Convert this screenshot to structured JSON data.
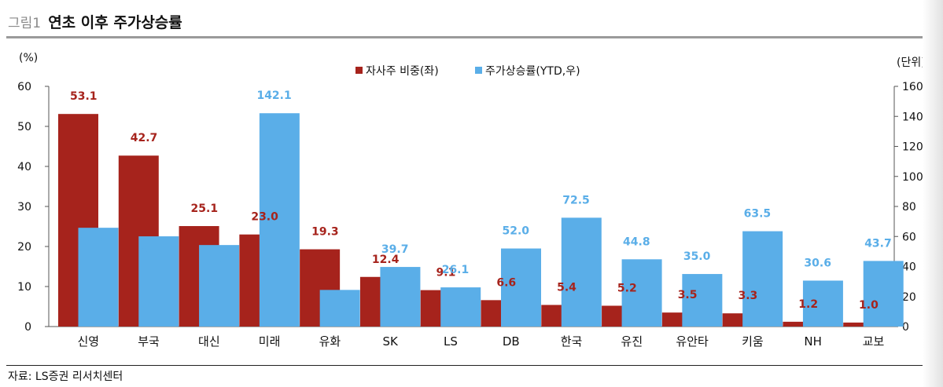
{
  "figure": {
    "label": "그림1",
    "title": "연초 이후 주가상승률"
  },
  "source": "자료: LS증권 리서치센터",
  "chart_data": {
    "type": "bar",
    "categories": [
      "신영",
      "부국",
      "대신",
      "미래",
      "유화",
      "SK",
      "LS",
      "DB",
      "한국",
      "유진",
      "유안타",
      "키움",
      "NH",
      "교보"
    ],
    "series": [
      {
        "name": "자사주 비중(좌)",
        "axis": "left",
        "color": "#a6231c",
        "values": [
          53.1,
          42.7,
          25.1,
          23.0,
          19.3,
          12.4,
          9.1,
          6.6,
          5.4,
          5.2,
          3.5,
          3.3,
          1.2,
          1.0
        ],
        "label_color": "#a6231c"
      },
      {
        "name": "주가상승률(YTD,우)",
        "axis": "right",
        "color": "#5aaee8",
        "values": [
          65.8,
          60.1,
          54.3,
          142.1,
          24.4,
          39.7,
          26.1,
          52.0,
          72.5,
          44.8,
          35.0,
          63.5,
          30.6,
          43.7
        ],
        "label_color": "#5aaee8"
      }
    ],
    "left_axis": {
      "unit": "(%)",
      "min": 0,
      "max": 60,
      "ticks": [
        0,
        10,
        20,
        30,
        40,
        50,
        60
      ]
    },
    "right_axis": {
      "unit": "(단위)",
      "min": 0,
      "max": 160,
      "ticks": [
        0,
        20,
        40,
        60,
        80,
        100,
        120,
        140,
        160
      ]
    },
    "legend_position": "top-center",
    "grid": false,
    "colors": {
      "left_bar": "#a6231c",
      "right_bar": "#5aaee8"
    }
  }
}
